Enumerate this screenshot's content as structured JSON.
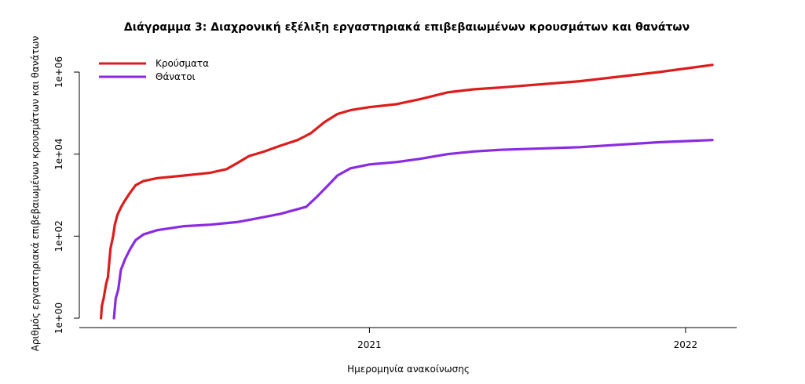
{
  "chart_data": {
    "type": "line",
    "title": "Διάγραμμα 3: Διαχρονική εξέλιξη εργαστηριακά επιβεβαιωμένων κρουσμάτων και θανάτων",
    "xlabel": "Ημερομηνία ανακοίνωσης",
    "ylabel": "Αριθμός εργαστηριακά επιβεβαιωμένων κρουσμάτων και θανάτων",
    "y_scale": "log10",
    "ylim": [
      1,
      2000000
    ],
    "xlim": [
      "2020-02-01",
      "2022-03-01"
    ],
    "x_ticks": [
      {
        "date": "2021-01-01",
        "label": "2021"
      },
      {
        "date": "2022-01-01",
        "label": "2022"
      }
    ],
    "y_ticks": [
      {
        "value": 1,
        "label": "1e+00"
      },
      {
        "value": 100,
        "label": "1e+02"
      },
      {
        "value": 10000,
        "label": "1e+04"
      },
      {
        "value": 1000000,
        "label": "1e+06"
      }
    ],
    "legend_position": "top-left",
    "series": [
      {
        "name": "Κρούσματα",
        "color": "#dd1c1c",
        "points": [
          [
            "2020-02-26",
            1
          ],
          [
            "2020-02-27",
            2
          ],
          [
            "2020-02-29",
            3
          ],
          [
            "2020-03-03",
            7
          ],
          [
            "2020-03-05",
            10
          ],
          [
            "2020-03-08",
            50
          ],
          [
            "2020-03-11",
            99
          ],
          [
            "2020-03-13",
            190
          ],
          [
            "2020-03-16",
            330
          ],
          [
            "2020-03-20",
            500
          ],
          [
            "2020-03-24",
            700
          ],
          [
            "2020-03-30",
            1100
          ],
          [
            "2020-04-06",
            1750
          ],
          [
            "2020-04-15",
            2200
          ],
          [
            "2020-05-01",
            2600
          ],
          [
            "2020-06-01",
            3000
          ],
          [
            "2020-07-01",
            3500
          ],
          [
            "2020-07-20",
            4300
          ],
          [
            "2020-08-01",
            6000
          ],
          [
            "2020-08-15",
            9000
          ],
          [
            "2020-09-01",
            11500
          ],
          [
            "2020-09-20",
            16000
          ],
          [
            "2020-10-10",
            22000
          ],
          [
            "2020-10-25",
            32000
          ],
          [
            "2020-11-10",
            60000
          ],
          [
            "2020-11-25",
            95000
          ],
          [
            "2020-12-10",
            118000
          ],
          [
            "2021-01-01",
            140000
          ],
          [
            "2021-02-01",
            165000
          ],
          [
            "2021-03-01",
            220000
          ],
          [
            "2021-04-01",
            320000
          ],
          [
            "2021-05-01",
            380000
          ],
          [
            "2021-06-01",
            420000
          ],
          [
            "2021-09-01",
            600000
          ],
          [
            "2021-12-01",
            1000000
          ],
          [
            "2022-02-01",
            1500000
          ]
        ]
      },
      {
        "name": "Θάνατοι",
        "color": "#8a2be2",
        "points": [
          [
            "2020-03-12",
            1
          ],
          [
            "2020-03-14",
            3
          ],
          [
            "2020-03-17",
            5
          ],
          [
            "2020-03-20",
            15
          ],
          [
            "2020-03-25",
            28
          ],
          [
            "2020-03-31",
            50
          ],
          [
            "2020-04-06",
            80
          ],
          [
            "2020-04-15",
            110
          ],
          [
            "2020-05-01",
            140
          ],
          [
            "2020-06-01",
            175
          ],
          [
            "2020-07-01",
            190
          ],
          [
            "2020-08-01",
            220
          ],
          [
            "2020-08-20",
            260
          ],
          [
            "2020-09-20",
            350
          ],
          [
            "2020-10-20",
            520
          ],
          [
            "2020-11-01",
            900
          ],
          [
            "2020-11-15",
            1800
          ],
          [
            "2020-11-25",
            3000
          ],
          [
            "2020-12-10",
            4500
          ],
          [
            "2021-01-01",
            5600
          ],
          [
            "2021-02-01",
            6400
          ],
          [
            "2021-03-01",
            7700
          ],
          [
            "2021-04-01",
            10000
          ],
          [
            "2021-05-01",
            11600
          ],
          [
            "2021-06-01",
            12700
          ],
          [
            "2021-09-01",
            14800
          ],
          [
            "2021-12-01",
            19500
          ],
          [
            "2022-02-01",
            22000
          ]
        ]
      }
    ]
  }
}
